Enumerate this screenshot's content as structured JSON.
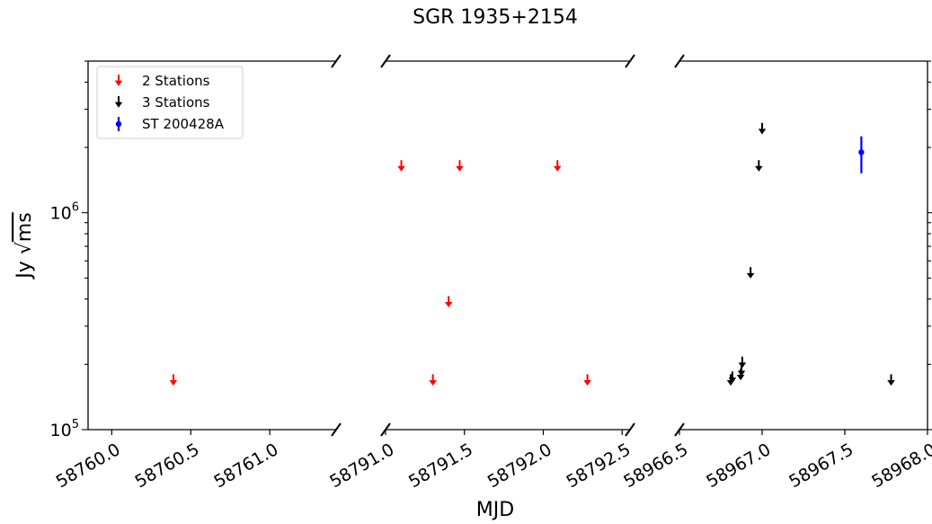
{
  "chart_data": {
    "type": "scatter",
    "title": "SGR 1935+2154",
    "xlabel": "MJD",
    "ylabel_prefix": "Jy ",
    "ylabel_radical": "√",
    "ylabel_unit": "ms",
    "y_scale": "log",
    "ylim": [
      100000,
      5000000
    ],
    "y_ticks": [
      {
        "value": 100000,
        "base": "10",
        "exp": "5"
      },
      {
        "value": 1000000,
        "base": "10",
        "exp": "6"
      }
    ],
    "broken_x_axis": true,
    "panels": [
      {
        "xlim": [
          58759.85,
          58761.42
        ],
        "ticks": [
          58760.0,
          58760.5,
          58761.0
        ],
        "tick_labels": [
          "58760.0",
          "58760.5",
          "58761.0"
        ]
      },
      {
        "xlim": [
          58791.0,
          58792.55
        ],
        "ticks": [
          58791.0,
          58791.5,
          58792.0,
          58792.5
        ],
        "tick_labels": [
          "58791.0",
          "58791.5",
          "58792.0",
          "58792.5"
        ]
      },
      {
        "xlim": [
          58966.5,
          58968.0
        ],
        "ticks": [
          58966.5,
          58967.0,
          58967.5,
          58968.0
        ],
        "tick_labels": [
          "58966.5",
          "58967.0",
          "58967.5",
          "58968.0"
        ]
      }
    ],
    "legend_position": "upper-left",
    "series": [
      {
        "name": "2 Stations",
        "color": "#ff0000",
        "marker": "down-arrow",
        "upper_limit": true,
        "points": [
          {
            "x": 58760.39,
            "y": 170000
          },
          {
            "x": 58791.1,
            "y": 1650000
          },
          {
            "x": 58791.3,
            "y": 170000
          },
          {
            "x": 58791.4,
            "y": 390000
          },
          {
            "x": 58791.47,
            "y": 1650000
          },
          {
            "x": 58792.09,
            "y": 1650000
          },
          {
            "x": 58792.28,
            "y": 170000
          }
        ]
      },
      {
        "name": "3 Stations",
        "color": "#000000",
        "marker": "down-arrow",
        "upper_limit": true,
        "points": [
          {
            "x": 58966.81,
            "y": 170000
          },
          {
            "x": 58966.82,
            "y": 175000
          },
          {
            "x": 58966.87,
            "y": 180000
          },
          {
            "x": 58966.875,
            "y": 188000
          },
          {
            "x": 58966.88,
            "y": 205000
          },
          {
            "x": 58966.93,
            "y": 530000
          },
          {
            "x": 58966.98,
            "y": 1650000
          },
          {
            "x": 58967.0,
            "y": 2450000
          },
          {
            "x": 58967.78,
            "y": 170000
          }
        ]
      },
      {
        "name": "ST 200428A",
        "color": "#0000ff",
        "marker": "point-errorbar",
        "points": [
          {
            "x": 58967.6,
            "y": 1900000,
            "y_low": 1520000,
            "y_high": 2250000
          }
        ]
      }
    ]
  }
}
